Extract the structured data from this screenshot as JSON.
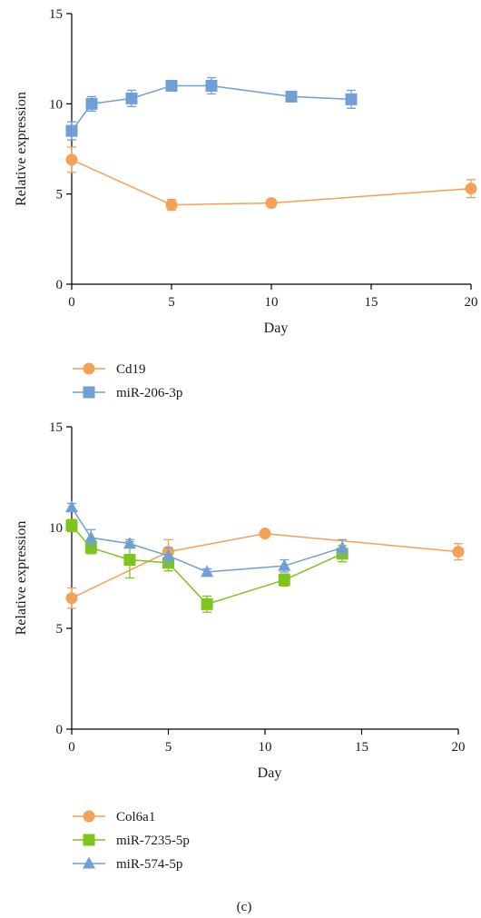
{
  "panel_label": "(c)",
  "colors": {
    "orange": "#f4a155",
    "blue": "#6f9fd6",
    "green": "#7fc41a",
    "axis": "#000000"
  },
  "chart_data": [
    {
      "type": "line",
      "xlabel": "Day",
      "ylabel": "Relative expression",
      "xlim": [
        0,
        20
      ],
      "ylim": [
        0,
        15
      ],
      "xticks": [
        0,
        5,
        10,
        15,
        20
      ],
      "yticks": [
        0,
        5,
        10,
        15
      ],
      "legend_position": "below",
      "series": [
        {
          "name": "Cd19",
          "color": "#f4a155",
          "marker": "circle",
          "x": [
            0,
            5,
            10,
            20
          ],
          "y": [
            6.9,
            4.4,
            4.5,
            5.3
          ],
          "err": [
            0.7,
            0.3,
            0.15,
            0.5
          ]
        },
        {
          "name": "miR-206-3p",
          "color": "#6f9fd6",
          "marker": "square",
          "x": [
            0,
            1,
            3,
            5,
            7,
            11,
            14
          ],
          "y": [
            8.5,
            10.0,
            10.3,
            11.0,
            11.0,
            10.4,
            10.25
          ],
          "err": [
            0.5,
            0.4,
            0.45,
            0.2,
            0.45,
            0.15,
            0.5
          ]
        }
      ]
    },
    {
      "type": "line",
      "xlabel": "Day",
      "ylabel": "Relative expression",
      "xlim": [
        0,
        20
      ],
      "ylim": [
        0,
        15
      ],
      "xticks": [
        0,
        5,
        10,
        15,
        20
      ],
      "yticks": [
        0,
        5,
        10,
        15
      ],
      "legend_position": "below",
      "series": [
        {
          "name": "Col6a1",
          "color": "#f4a155",
          "marker": "circle",
          "x": [
            0,
            5,
            10,
            20
          ],
          "y": [
            6.5,
            8.8,
            9.7,
            8.8
          ],
          "err": [
            0.5,
            0.6,
            0.15,
            0.4
          ]
        },
        {
          "name": "miR-7235-5p",
          "color": "#7fc41a",
          "marker": "square",
          "x": [
            0,
            1,
            3,
            5,
            7,
            11,
            14
          ],
          "y": [
            10.1,
            9.0,
            8.4,
            8.25,
            6.2,
            7.4,
            8.7
          ],
          "err": [
            0.3,
            0.3,
            0.9,
            0.4,
            0.4,
            0.3,
            0.4
          ]
        },
        {
          "name": "miR-574-5p",
          "color": "#6f9fd6",
          "marker": "triangle",
          "x": [
            0,
            1,
            3,
            5,
            7,
            11,
            14
          ],
          "y": [
            11.0,
            9.5,
            9.2,
            8.6,
            7.8,
            8.1,
            9.0
          ],
          "err": [
            0.2,
            0.4,
            0.2,
            0.4,
            0.15,
            0.3,
            0.4
          ]
        }
      ]
    }
  ]
}
